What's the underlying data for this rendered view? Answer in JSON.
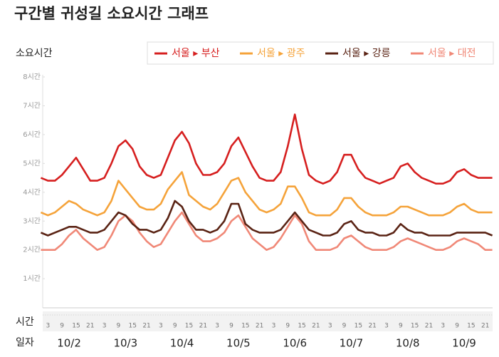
{
  "chart_data": {
    "type": "line",
    "title": "구간별 귀성길 소요시간 그래프",
    "y_label": "소요시간",
    "hour_label": "시간",
    "day_label": "일자",
    "categories": [
      null,
      "3",
      null,
      "9",
      null,
      "15",
      null,
      "21",
      null,
      "3",
      null,
      "9",
      null,
      "15",
      null,
      "21",
      null,
      "3",
      null,
      "9",
      null,
      "15",
      null,
      "21",
      null,
      "3",
      null,
      "9",
      null,
      "15",
      null,
      "21",
      null,
      "3",
      null,
      "9",
      null,
      "15",
      null,
      "21",
      null,
      "3",
      null,
      "9",
      null,
      "15",
      null,
      "21",
      null,
      "3",
      null,
      "9",
      null,
      "15",
      null,
      "21",
      null,
      "3",
      null,
      "9",
      null,
      "15",
      null,
      "21",
      null
    ],
    "days": [
      "10/2",
      "10/3",
      "10/4",
      "10/5",
      "10/6",
      "10/7",
      "10/8",
      "10/9"
    ],
    "ylim": [
      0,
      8
    ],
    "yticks": [
      {
        "value": 1,
        "label": "1시간"
      },
      {
        "value": 2,
        "label": "2시간"
      },
      {
        "value": 3,
        "label": "3시간"
      },
      {
        "value": 4,
        "label": "4시간"
      },
      {
        "value": 5,
        "label": "5시간"
      },
      {
        "value": 6,
        "label": "6시간"
      },
      {
        "value": 7,
        "label": "7시간"
      },
      {
        "value": 8,
        "label": "8시간"
      }
    ],
    "grid": false,
    "legend": "top-right",
    "series": [
      {
        "name": "서울 ▸ 부산",
        "color": "#d61f1f",
        "values": [
          4.5,
          4.4,
          4.4,
          4.6,
          4.9,
          5.2,
          4.8,
          4.4,
          4.4,
          4.5,
          5.0,
          5.6,
          5.8,
          5.5,
          4.9,
          4.6,
          4.5,
          4.6,
          5.2,
          5.8,
          6.1,
          5.7,
          5.0,
          4.6,
          4.6,
          4.7,
          5.0,
          5.6,
          5.9,
          5.4,
          4.9,
          4.5,
          4.4,
          4.4,
          4.7,
          5.6,
          6.7,
          5.5,
          4.6,
          4.4,
          4.3,
          4.4,
          4.7,
          5.3,
          5.3,
          4.8,
          4.5,
          4.4,
          4.3,
          4.4,
          4.5,
          4.9,
          5.0,
          4.7,
          4.5,
          4.4,
          4.3,
          4.3,
          4.4,
          4.7,
          4.8,
          4.6,
          4.5,
          4.5,
          4.5
        ]
      },
      {
        "name": "서울 ▸ 광주",
        "color": "#f5a33a",
        "values": [
          3.3,
          3.2,
          3.3,
          3.5,
          3.7,
          3.6,
          3.4,
          3.3,
          3.2,
          3.3,
          3.7,
          4.4,
          4.1,
          3.8,
          3.5,
          3.4,
          3.4,
          3.6,
          4.1,
          4.4,
          4.7,
          3.9,
          3.7,
          3.5,
          3.4,
          3.6,
          4.0,
          4.4,
          4.5,
          4.0,
          3.7,
          3.4,
          3.3,
          3.4,
          3.6,
          4.2,
          4.2,
          3.8,
          3.3,
          3.2,
          3.2,
          3.2,
          3.4,
          3.8,
          3.8,
          3.5,
          3.3,
          3.2,
          3.2,
          3.2,
          3.3,
          3.5,
          3.5,
          3.4,
          3.3,
          3.2,
          3.2,
          3.2,
          3.3,
          3.5,
          3.6,
          3.4,
          3.3,
          3.3,
          3.3
        ]
      },
      {
        "name": "서울 ▸ 강릉",
        "color": "#5a2314",
        "values": [
          2.6,
          2.5,
          2.6,
          2.7,
          2.8,
          2.8,
          2.7,
          2.6,
          2.6,
          2.7,
          3.0,
          3.3,
          3.2,
          2.9,
          2.7,
          2.7,
          2.6,
          2.7,
          3.1,
          3.7,
          3.5,
          3.0,
          2.7,
          2.7,
          2.6,
          2.7,
          3.0,
          3.6,
          3.6,
          2.9,
          2.7,
          2.6,
          2.6,
          2.6,
          2.7,
          3.0,
          3.3,
          3.0,
          2.7,
          2.6,
          2.5,
          2.5,
          2.6,
          2.9,
          3.0,
          2.7,
          2.6,
          2.6,
          2.5,
          2.5,
          2.6,
          2.9,
          2.7,
          2.6,
          2.6,
          2.5,
          2.5,
          2.5,
          2.5,
          2.6,
          2.6,
          2.6,
          2.6,
          2.6,
          2.5
        ]
      },
      {
        "name": "서울 ▸ 대전",
        "color": "#f08877",
        "values": [
          2.0,
          2.0,
          2.0,
          2.2,
          2.5,
          2.7,
          2.4,
          2.2,
          2.0,
          2.1,
          2.5,
          3.0,
          3.2,
          3.0,
          2.6,
          2.3,
          2.1,
          2.2,
          2.6,
          3.0,
          3.3,
          2.9,
          2.5,
          2.3,
          2.3,
          2.4,
          2.6,
          3.0,
          3.2,
          2.8,
          2.4,
          2.2,
          2.0,
          2.1,
          2.4,
          2.8,
          3.2,
          2.9,
          2.3,
          2.0,
          2.0,
          2.0,
          2.1,
          2.4,
          2.5,
          2.3,
          2.1,
          2.0,
          2.0,
          2.0,
          2.1,
          2.3,
          2.4,
          2.3,
          2.2,
          2.1,
          2.0,
          2.0,
          2.1,
          2.3,
          2.4,
          2.3,
          2.2,
          2.0,
          2.0
        ]
      }
    ]
  }
}
